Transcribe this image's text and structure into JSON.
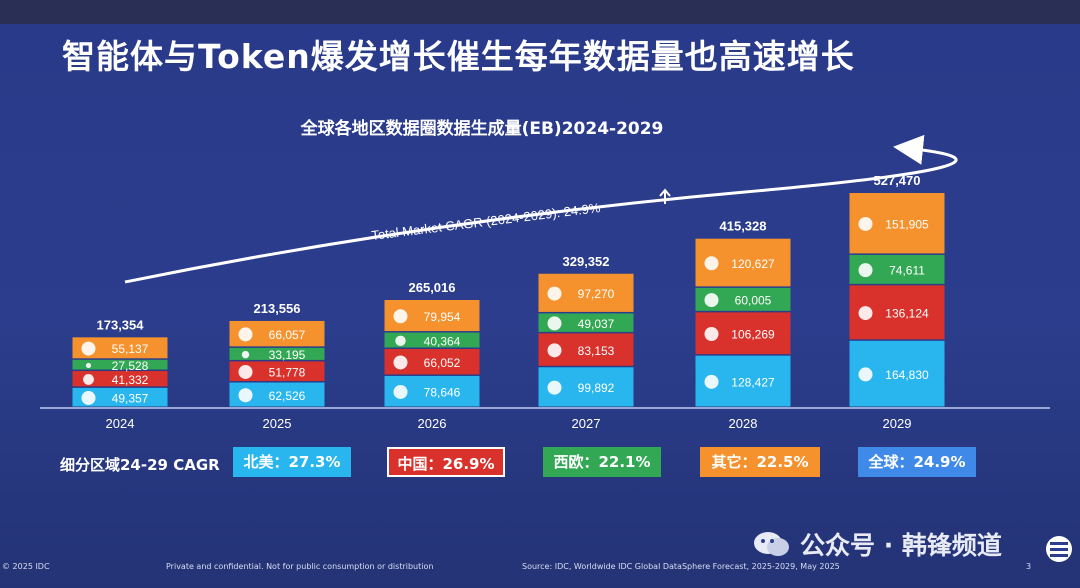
{
  "title": "智能体与Token爆发增长催生每年数据量也高速增长",
  "chart_data": {
    "type": "bar",
    "stacked": true,
    "title": "全球各地区数据圈数据生成量(EB)2024-2029",
    "categories": [
      "2024",
      "2025",
      "2026",
      "2027",
      "2028",
      "2029"
    ],
    "series": [
      {
        "name": "北美",
        "values": [
          49357,
          62526,
          78646,
          99892,
          128427,
          164830
        ],
        "value_labels": [
          "49,357",
          "62,526",
          "78,646",
          "99,892",
          "128,427",
          "164,830"
        ],
        "color": "#29b6ef",
        "icon": "north-america-map-icon"
      },
      {
        "name": "中国",
        "values": [
          41332,
          51778,
          66052,
          83153,
          106269,
          136124
        ],
        "value_labels": [
          "41,332",
          "51,778",
          "66,052",
          "83,153",
          "106,269",
          "136,124"
        ],
        "color": "#d9312b",
        "icon": "china-map-icon"
      },
      {
        "name": "西欧",
        "values": [
          27528,
          33195,
          40364,
          49037,
          60005,
          74611
        ],
        "value_labels": [
          "27,528",
          "33,195",
          "40,364",
          "49,037",
          "60,005",
          "74,611"
        ],
        "color": "#33a854",
        "icon": "europe-map-icon"
      },
      {
        "name": "其它",
        "values": [
          55137,
          66057,
          79954,
          97270,
          120627,
          151905
        ],
        "value_labels": [
          "55,137",
          "66,057",
          "79,954",
          "97,270",
          "120,627",
          "151,905"
        ],
        "color": "#f5922e",
        "icon": "globe-icon"
      }
    ],
    "totals": [
      173354,
      213556,
      265016,
      329352,
      415328,
      527470
    ],
    "total_labels": [
      "173,354",
      "213,556",
      "265,016",
      "329,352",
      "415,328",
      "527,470"
    ],
    "annotation": "Total Market CAGR (2024-2029): 24.9%",
    "annotation_arrow": "up-arrow-icon"
  },
  "cagr": {
    "label": "细分区域24-29 CAGR",
    "items": [
      {
        "text": "北美：27.3%",
        "color": "#29b6ef"
      },
      {
        "text": "中国：26.9%",
        "color": "#d9312b"
      },
      {
        "text": "西欧：22.1%",
        "color": "#33a854"
      },
      {
        "text": "其它：22.5%",
        "color": "#f5922e"
      },
      {
        "text": "全球：24.9%",
        "color": "#3f8ae8"
      }
    ]
  },
  "footer": {
    "copyright": "© 2025 IDC",
    "confidential": "Private and confidential. Not for public consumption or distribution",
    "source": "Source: IDC,  Worldwide IDC Global DataSphere Forecast, 2025-2029,  May 2025",
    "page": "3"
  },
  "watermark": "公众号 · 韩锋频道"
}
